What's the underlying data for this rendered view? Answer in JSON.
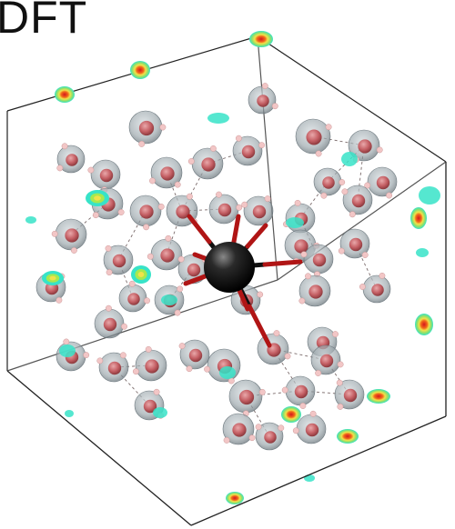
{
  "title": "DFT",
  "colors": {
    "background": "#ffffff",
    "box_edge": "#222222",
    "water_shell": "#9aa6ac",
    "oxygen": "#c96a6e",
    "hydrogen": "#f2c6c6",
    "central_atom": "#111111",
    "bond": "#b01515",
    "density_low": "#37e3c8",
    "density_mid": "#f1e24a",
    "density_high": "#d4171e"
  }
}
